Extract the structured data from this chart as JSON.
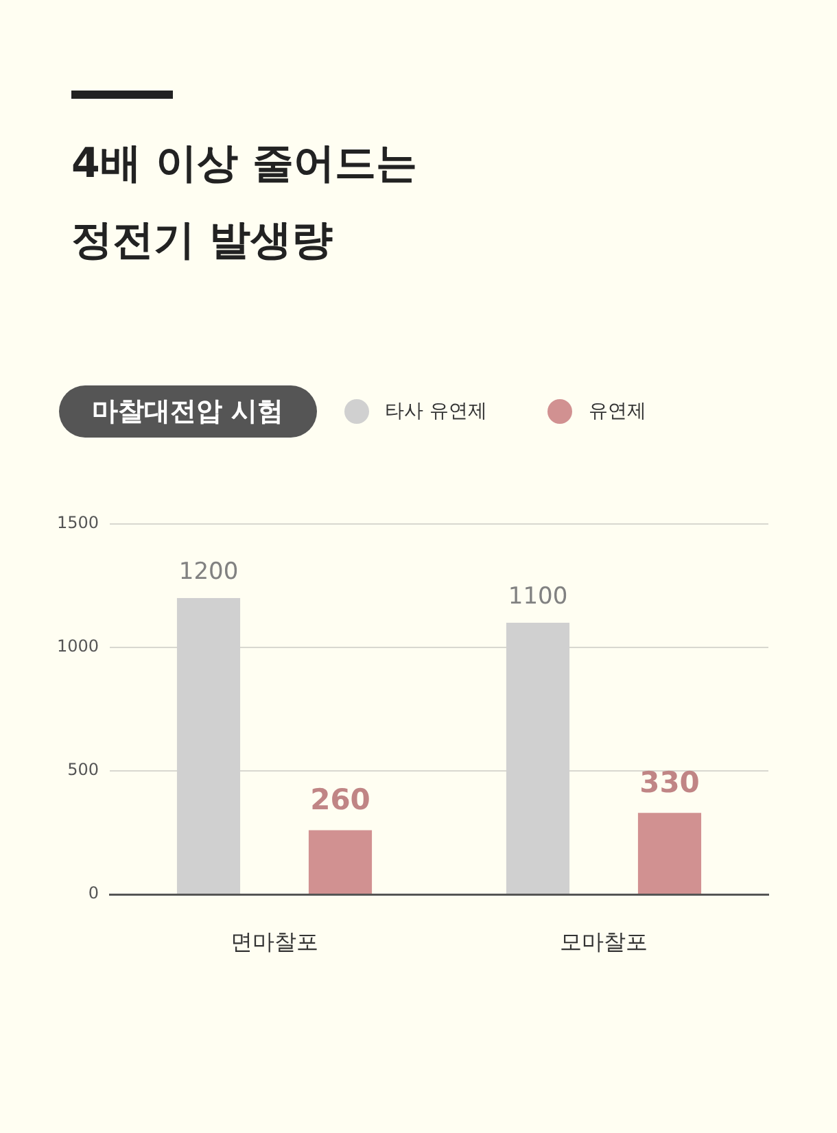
{
  "chart_data": {
    "type": "bar",
    "title": "4배 이상 줄어드는\n정전기 발생량",
    "legend_title": "마찰대전압 시험",
    "categories": [
      "면마찰포",
      "모마찰포"
    ],
    "series": [
      {
        "name": "타사 유연제",
        "color": "#d0d0d0",
        "values": [
          1200,
          1100
        ]
      },
      {
        "name": "유연제",
        "color": "#d19191",
        "values": [
          260,
          330
        ]
      }
    ],
    "ylim": [
      0,
      1500
    ],
    "yticks": [
      0,
      500,
      1000,
      1500
    ],
    "grid": "y",
    "legend": "top",
    "data_labels": true
  }
}
